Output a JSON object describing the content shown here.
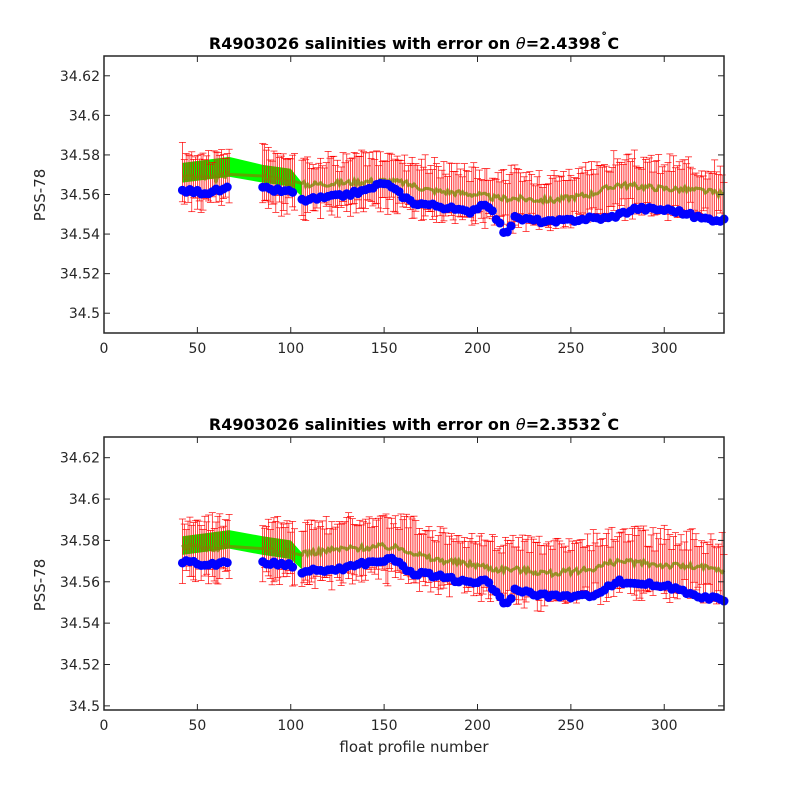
{
  "chart_data": [
    {
      "type": "scatter",
      "title_prefix": "R4903026 salinities with error on ",
      "title_symbol": "θ",
      "title_value": "=2.4398",
      "title_degree": "˚",
      "title_unit": "C",
      "ylabel": "PSS-78",
      "xlabel": "",
      "xlim": [
        0,
        332
      ],
      "ylim": [
        34.49,
        34.63
      ],
      "xticks": [
        "0",
        "50",
        "100",
        "150",
        "200",
        "250",
        "300"
      ],
      "yticks": [
        "34.5",
        "34.52",
        "34.54",
        "34.56",
        "34.58",
        "34.6",
        "34.62"
      ],
      "series": [
        {
          "role": "calibrated-mean",
          "color": "#ff0000",
          "points": [
            [
              42,
              34.569
            ],
            [
              60,
              34.568
            ],
            [
              67,
              34.571
            ],
            [
              85,
              34.569
            ],
            [
              100,
              34.566
            ],
            [
              108,
              34.565
            ],
            [
              130,
              34.566
            ],
            [
              150,
              34.567
            ],
            [
              160,
              34.566
            ],
            [
              175,
              34.562
            ],
            [
              200,
              34.56
            ],
            [
              210,
              34.558
            ],
            [
              220,
              34.558
            ],
            [
              240,
              34.557
            ],
            [
              260,
              34.56
            ],
            [
              275,
              34.565
            ],
            [
              300,
              34.563
            ],
            [
              320,
              34.562
            ],
            [
              332,
              34.56
            ]
          ]
        },
        {
          "role": "mapped-band",
          "color": "#00ff00",
          "upper": [
            [
              42,
              34.576
            ],
            [
              67,
              34.579
            ],
            [
              85,
              34.575
            ],
            [
              100,
              34.573
            ],
            [
              106,
              34.566
            ]
          ],
          "lower": [
            [
              42,
              34.566
            ],
            [
              67,
              34.569
            ],
            [
              85,
              34.566
            ],
            [
              100,
              34.564
            ],
            [
              106,
              34.559
            ]
          ]
        },
        {
          "role": "float-salinity",
          "color": "#0000ff",
          "points": [
            [
              42,
              34.562
            ],
            [
              55,
              34.561
            ],
            [
              67,
              34.563
            ],
            [
              85,
              34.563
            ],
            [
              102,
              34.561
            ],
            [
              106,
              34.557
            ],
            [
              125,
              34.559
            ],
            [
              140,
              34.562
            ],
            [
              150,
              34.566
            ],
            [
              165,
              34.556
            ],
            [
              180,
              34.554
            ],
            [
              195,
              34.551
            ],
            [
              205,
              34.556
            ],
            [
              215,
              34.54
            ],
            [
              220,
              34.548
            ],
            [
              240,
              34.546
            ],
            [
              260,
              34.548
            ],
            [
              270,
              34.548
            ],
            [
              285,
              34.553
            ],
            [
              305,
              34.552
            ],
            [
              320,
              34.548
            ],
            [
              332,
              34.547
            ]
          ]
        }
      ],
      "error_half_range": 0.012
    },
    {
      "type": "scatter",
      "title_prefix": "R4903026 salinities with error on ",
      "title_symbol": "θ",
      "title_value": "=2.3532",
      "title_degree": "˚",
      "title_unit": "C",
      "ylabel": "PSS-78",
      "xlabel": "float profile number",
      "xlim": [
        0,
        332
      ],
      "ylim": [
        34.498,
        34.63
      ],
      "xticks": [
        "0",
        "50",
        "100",
        "150",
        "200",
        "250",
        "300"
      ],
      "yticks": [
        "34.5",
        "34.52",
        "34.54",
        "34.56",
        "34.58",
        "34.6",
        "34.62"
      ],
      "series": [
        {
          "role": "calibrated-mean",
          "color": "#ff0000",
          "points": [
            [
              42,
              34.577
            ],
            [
              60,
              34.576
            ],
            [
              67,
              34.578
            ],
            [
              85,
              34.576
            ],
            [
              100,
              34.574
            ],
            [
              108,
              34.574
            ],
            [
              130,
              34.576
            ],
            [
              150,
              34.577
            ],
            [
              160,
              34.576
            ],
            [
              175,
              34.571
            ],
            [
              200,
              34.568
            ],
            [
              210,
              34.566
            ],
            [
              220,
              34.566
            ],
            [
              240,
              34.564
            ],
            [
              260,
              34.566
            ],
            [
              275,
              34.57
            ],
            [
              300,
              34.568
            ],
            [
              320,
              34.567
            ],
            [
              332,
              34.565
            ]
          ]
        },
        {
          "role": "mapped-band",
          "color": "#00ff00",
          "upper": [
            [
              42,
              34.582
            ],
            [
              67,
              34.585
            ],
            [
              85,
              34.582
            ],
            [
              100,
              34.58
            ],
            [
              106,
              34.574
            ]
          ],
          "lower": [
            [
              42,
              34.573
            ],
            [
              67,
              34.576
            ],
            [
              85,
              34.573
            ],
            [
              100,
              34.571
            ],
            [
              106,
              34.566
            ]
          ]
        },
        {
          "role": "float-salinity",
          "color": "#0000ff",
          "points": [
            [
              42,
              34.57
            ],
            [
              55,
              34.568
            ],
            [
              67,
              34.57
            ],
            [
              85,
              34.569
            ],
            [
              102,
              34.568
            ],
            [
              106,
              34.565
            ],
            [
              125,
              34.566
            ],
            [
              140,
              34.569
            ],
            [
              155,
              34.571
            ],
            [
              165,
              34.564
            ],
            [
              180,
              34.563
            ],
            [
              195,
              34.559
            ],
            [
              205,
              34.561
            ],
            [
              215,
              34.548
            ],
            [
              220,
              34.556
            ],
            [
              240,
              34.553
            ],
            [
              260,
              34.553
            ],
            [
              275,
              34.56
            ],
            [
              290,
              34.559
            ],
            [
              305,
              34.557
            ],
            [
              320,
              34.553
            ],
            [
              332,
              34.551
            ]
          ]
        }
      ],
      "error_half_range": 0.013
    }
  ]
}
